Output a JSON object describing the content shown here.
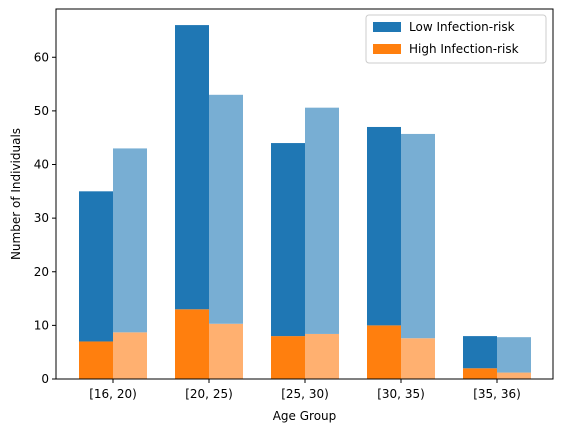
{
  "chart_data": {
    "type": "bar",
    "stacked": true,
    "grouped": true,
    "categories": [
      "[16, 20)",
      "[20, 25)",
      "[25, 30)",
      "[30, 35)",
      "[35, 36)"
    ],
    "xlabel": "Age Group",
    "ylabel": "Number of Individuals",
    "ylim": [
      0,
      69
    ],
    "yticks": [
      0,
      10,
      20,
      30,
      40,
      50,
      60
    ],
    "legend_position": "top-right",
    "legend": [
      {
        "label": "Low Infection-risk",
        "color": "#1f77b4"
      },
      {
        "label": "High Infection-risk",
        "color": "#ff7f0e"
      }
    ],
    "groups": [
      {
        "series": [
          {
            "name": "Low Infection-risk",
            "color": "#1f77b4",
            "values": [
              28,
              53,
              36,
              37,
              6
            ]
          },
          {
            "name": "High Infection-risk",
            "color": "#ff7f0e",
            "values": [
              7,
              13,
              8,
              10,
              2
            ]
          }
        ]
      },
      {
        "series": [
          {
            "name": "Low Infection-risk",
            "color": "#78aed3",
            "values": [
              34.3,
              42.7,
              42.2,
              38.1,
              6.6
            ]
          },
          {
            "name": "High Infection-risk",
            "color": "#ffb070",
            "values": [
              8.7,
              10.3,
              8.4,
              7.6,
              1.2
            ]
          }
        ]
      }
    ]
  }
}
